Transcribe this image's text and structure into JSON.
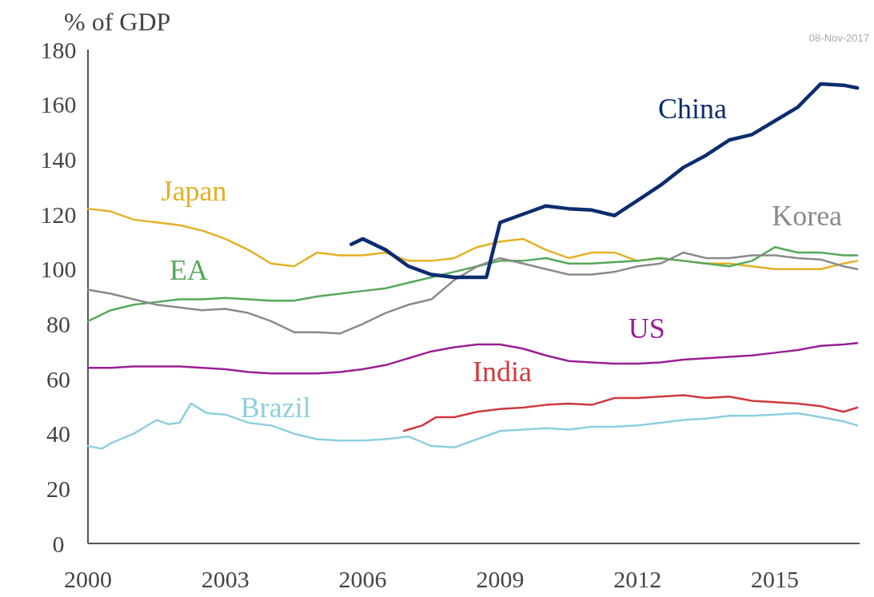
{
  "chart_data": {
    "type": "line",
    "ylabel": "% of GDP",
    "annotations": [
      "08-Nov-2017"
    ],
    "xlim": [
      2000,
      2016.85
    ],
    "xticks": [
      2000,
      2003,
      2006,
      2009,
      2012,
      2015
    ],
    "ylim": [
      0,
      180
    ],
    "yticks": [
      0,
      20,
      40,
      60,
      80,
      100,
      120,
      140,
      160,
      180
    ],
    "grid": false,
    "marker": "none",
    "line_style": "solid",
    "x": [
      2000,
      2000.5,
      2001,
      2001.5,
      2002,
      2002.5,
      2003,
      2003.5,
      2004,
      2004.5,
      2005,
      2005.5,
      2006,
      2006.5,
      2007,
      2007.5,
      2008,
      2008.5,
      2009,
      2009.5,
      2010,
      2010.5,
      2011,
      2011.5,
      2012,
      2012.5,
      2013,
      2013.5,
      2014,
      2014.5,
      2015,
      2015.5,
      2016,
      2016.5,
      2016.8
    ],
    "series": [
      {
        "name": "Japan",
        "color": "#e3b026",
        "values": [
          122,
          121,
          118,
          117,
          116,
          114,
          111,
          107,
          102,
          101,
          106,
          105,
          105,
          106,
          103,
          103,
          104,
          108,
          110,
          111,
          107,
          104,
          106,
          106,
          103,
          104,
          103,
          102,
          102,
          101,
          100,
          100,
          100,
          102,
          103
        ]
      },
      {
        "name": "EA",
        "color": "#55a85a",
        "values": [
          81,
          85,
          87,
          88,
          89,
          89,
          89.5,
          89,
          88.5,
          88.5,
          90,
          91,
          92,
          93,
          95,
          97,
          99,
          101,
          103,
          103,
          104,
          102,
          102,
          102.5,
          103,
          104,
          103,
          102,
          101,
          103,
          108,
          106,
          106,
          105,
          105
        ]
      },
      {
        "name": "Korea",
        "color": "#8a8a8a",
        "values": [
          92.5,
          91,
          89,
          87,
          86,
          85,
          85.5,
          84,
          81,
          77,
          77,
          76.5,
          80,
          84,
          87,
          89,
          96,
          101,
          104,
          102,
          100,
          98,
          98,
          99,
          101,
          102,
          106,
          104,
          104,
          105,
          105,
          104,
          103.5,
          101,
          100
        ]
      },
      {
        "name": "US",
        "color": "#9a1f94",
        "values": [
          64,
          64,
          64.5,
          64.5,
          64.5,
          64,
          63.5,
          62.5,
          62,
          62,
          62,
          62.5,
          63.5,
          65,
          67.5,
          70,
          71.5,
          72.5,
          72.5,
          71,
          68.5,
          66.5,
          66,
          65.5,
          65.5,
          66,
          67,
          67.5,
          68,
          68.5,
          69.5,
          70.5,
          72,
          72.5,
          73
        ]
      },
      {
        "name": "India",
        "color": "#cf3a3e",
        "x": [
          2006.9,
          2007.3,
          2007.6,
          2008,
          2008.5,
          2009,
          2009.5,
          2010,
          2010.5,
          2011,
          2011.5,
          2012,
          2012.5,
          2013,
          2013.5,
          2014,
          2014.5,
          2015,
          2015.5,
          2016,
          2016.5,
          2016.8
        ],
        "values": [
          41,
          43,
          46,
          46,
          48,
          49,
          49.5,
          50.5,
          51,
          50.5,
          53,
          53,
          53.5,
          54,
          53,
          53.5,
          52,
          51.5,
          51,
          50,
          48,
          49.5
        ]
      },
      {
        "name": "Brazil",
        "color": "#8dcfdd",
        "x": [
          2000,
          2000.3,
          2000.5,
          2001,
          2001.5,
          2001.75,
          2002,
          2002.25,
          2002.6,
          2003,
          2003.5,
          2004,
          2004.5,
          2005,
          2005.5,
          2006,
          2006.5,
          2007,
          2007.5,
          2008,
          2008.5,
          2009,
          2009.5,
          2010,
          2010.5,
          2011,
          2011.5,
          2012,
          2012.5,
          2013,
          2013.5,
          2014,
          2014.5,
          2015,
          2015.5,
          2016,
          2016.5,
          2016.8
        ],
        "values": [
          35.5,
          34.5,
          36.5,
          40,
          45,
          43.5,
          44,
          51,
          47.5,
          47,
          44,
          43,
          40,
          38,
          37.5,
          37.5,
          38,
          39,
          35.5,
          35,
          38,
          41,
          41.5,
          42,
          41.5,
          42.5,
          42.5,
          43,
          44,
          45,
          45.5,
          46.5,
          46.5,
          47,
          47.5,
          46,
          44.5,
          43
        ]
      },
      {
        "name": "China",
        "color": "#0b2d6f",
        "x": [
          2005.75,
          2006,
          2006.5,
          2007,
          2007.5,
          2008,
          2008.7,
          2009,
          2009.5,
          2010,
          2010.5,
          2011,
          2011.5,
          2012,
          2012.5,
          2013,
          2013.5,
          2014,
          2014.5,
          2015,
          2015.5,
          2016,
          2016.5,
          2016.8
        ],
        "values": [
          109,
          111,
          107,
          101,
          98,
          97,
          97,
          117,
          120,
          123,
          122,
          121.5,
          119.5,
          125,
          130.5,
          137,
          141.5,
          147,
          149,
          154,
          159,
          167.5,
          167,
          166
        ]
      }
    ]
  }
}
